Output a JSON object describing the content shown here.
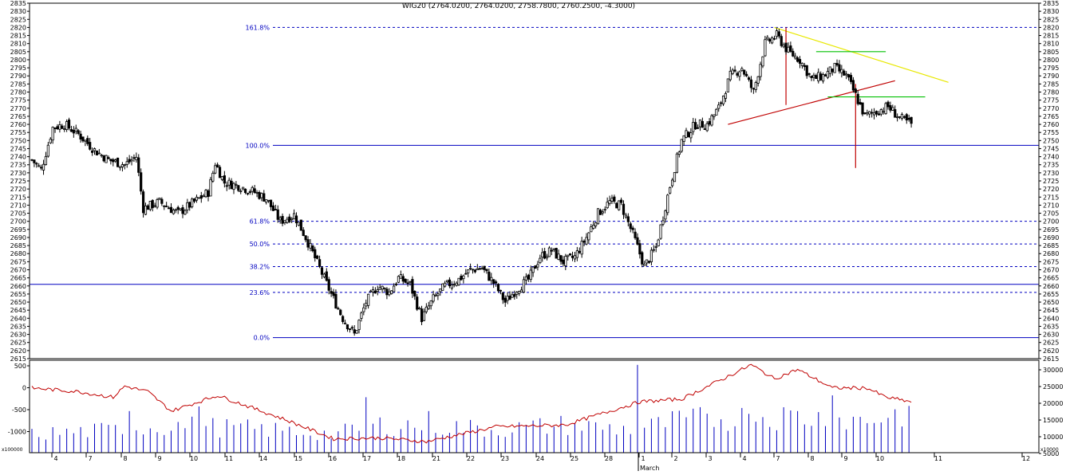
{
  "chart_data": {
    "type": "candlestick",
    "title": "WIG20 (2764.0200, 2764.0200, 2758.7800, 2760.2500, -4.3000)",
    "colors": {
      "background": "#ffffff",
      "candle": "#000000",
      "fib": "#0000c0",
      "volume": "#0000c0",
      "indicator": "#c00000",
      "green": "#00c000",
      "yellow": "#e8e800",
      "red": "#c00000"
    },
    "price_axis": {
      "min": 2615,
      "max": 2835,
      "step": 5
    },
    "fib_levels": [
      {
        "label": "161.8%",
        "value": 2820,
        "style": "dashed"
      },
      {
        "label": "100.0%",
        "value": 2747,
        "style": "solid"
      },
      {
        "label": "61.8%",
        "value": 2700,
        "style": "dashed"
      },
      {
        "label": "50.0%",
        "value": 2686,
        "style": "dashed"
      },
      {
        "label": "38.2%",
        "value": 2672,
        "style": "dashed"
      },
      {
        "label": "23.6%",
        "value": 2656,
        "style": "dashed"
      },
      {
        "label": "0.0%",
        "value": 2628,
        "style": "solid"
      }
    ],
    "horizontal_lines": [
      {
        "value": 2661,
        "style": "solid"
      }
    ],
    "x_axis": {
      "month_label": "March",
      "day_labels": [
        "4",
        "7",
        "8",
        "9",
        "10",
        "11",
        "14",
        "15",
        "16",
        "17",
        "18",
        "21",
        "22",
        "23",
        "24",
        "25",
        "28",
        "1",
        "2",
        "3",
        "4",
        "7",
        "8",
        "9",
        "10",
        "11",
        "12"
      ]
    },
    "price_anchors": [
      [
        0,
        2738
      ],
      [
        4,
        2732
      ],
      [
        9,
        2758
      ],
      [
        14,
        2760
      ],
      [
        20,
        2754
      ],
      [
        27,
        2744
      ],
      [
        33,
        2738
      ],
      [
        40,
        2735
      ],
      [
        45,
        2740
      ],
      [
        48,
        2708
      ],
      [
        55,
        2712
      ],
      [
        63,
        2705
      ],
      [
        70,
        2712
      ],
      [
        76,
        2718
      ],
      [
        79,
        2736
      ],
      [
        83,
        2724
      ],
      [
        89,
        2722
      ],
      [
        96,
        2718
      ],
      [
        101,
        2714
      ],
      [
        107,
        2700
      ],
      [
        113,
        2704
      ],
      [
        118,
        2690
      ],
      [
        124,
        2671
      ],
      [
        129,
        2655
      ],
      [
        134,
        2640
      ],
      [
        139,
        2630
      ],
      [
        144,
        2650
      ],
      [
        149,
        2660
      ],
      [
        154,
        2656
      ],
      [
        158,
        2665
      ],
      [
        163,
        2661
      ],
      [
        168,
        2640
      ],
      [
        173,
        2652
      ],
      [
        178,
        2660
      ],
      [
        184,
        2664
      ],
      [
        189,
        2670
      ],
      [
        194,
        2671
      ],
      [
        199,
        2662
      ],
      [
        204,
        2650
      ],
      [
        209,
        2658
      ],
      [
        214,
        2664
      ],
      [
        219,
        2678
      ],
      [
        224,
        2682
      ],
      [
        229,
        2675
      ],
      [
        234,
        2678
      ],
      [
        239,
        2690
      ],
      [
        244,
        2705
      ],
      [
        249,
        2712
      ],
      [
        254,
        2710
      ],
      [
        259,
        2692
      ],
      [
        264,
        2672
      ],
      [
        269,
        2684
      ],
      [
        275,
        2722
      ],
      [
        280,
        2750
      ],
      [
        286,
        2760
      ],
      [
        291,
        2760
      ],
      [
        296,
        2770
      ],
      [
        301,
        2790
      ],
      [
        306,
        2795
      ],
      [
        311,
        2780
      ],
      [
        316,
        2810
      ],
      [
        321,
        2815
      ],
      [
        326,
        2805
      ],
      [
        331,
        2800
      ],
      [
        336,
        2788
      ],
      [
        341,
        2790
      ],
      [
        346,
        2795
      ],
      [
        351,
        2790
      ],
      [
        355,
        2778
      ],
      [
        359,
        2765
      ],
      [
        364,
        2768
      ],
      [
        369,
        2771
      ],
      [
        374,
        2764
      ],
      [
        379,
        2760
      ]
    ],
    "volume_anchors": [
      [
        0,
        0.2
      ],
      [
        40,
        0.25
      ],
      [
        60,
        0.3
      ],
      [
        100,
        0.25
      ],
      [
        130,
        0.2
      ],
      [
        150,
        0.3
      ],
      [
        170,
        0.3
      ],
      [
        200,
        0.25
      ],
      [
        230,
        0.3
      ],
      [
        260,
        0.25
      ],
      [
        280,
        0.35
      ],
      [
        320,
        0.4
      ],
      [
        360,
        0.35
      ],
      [
        379,
        0.45
      ]
    ],
    "volume_spikes": [
      [
        41,
        0.45
      ],
      [
        72,
        0.5
      ],
      [
        145,
        0.6
      ],
      [
        170,
        0.45
      ],
      [
        262,
        0.95
      ],
      [
        310,
        0.42
      ],
      [
        330,
        0.45
      ],
      [
        345,
        0.62
      ]
    ],
    "indicator_anchors": [
      [
        0,
        0.7
      ],
      [
        20,
        0.66
      ],
      [
        35,
        0.6
      ],
      [
        40,
        0.72
      ],
      [
        50,
        0.66
      ],
      [
        60,
        0.45
      ],
      [
        80,
        0.62
      ],
      [
        110,
        0.35
      ],
      [
        130,
        0.15
      ],
      [
        150,
        0.16
      ],
      [
        170,
        0.12
      ],
      [
        200,
        0.28
      ],
      [
        230,
        0.3
      ],
      [
        262,
        0.55
      ],
      [
        280,
        0.58
      ],
      [
        298,
        0.8
      ],
      [
        310,
        0.95
      ],
      [
        320,
        0.8
      ],
      [
        330,
        0.9
      ],
      [
        345,
        0.7
      ],
      [
        360,
        0.7
      ],
      [
        368,
        0.6
      ],
      [
        379,
        0.55
      ]
    ],
    "volume_axis": {
      "left_ticks": [
        "500",
        "0",
        "-500",
        "-1000"
      ],
      "right_ticks": [
        "30000",
        "25000",
        "20000",
        "15000",
        "10000",
        "5000"
      ],
      "unit_left": "x100000",
      "unit_right": "x10000"
    }
  }
}
